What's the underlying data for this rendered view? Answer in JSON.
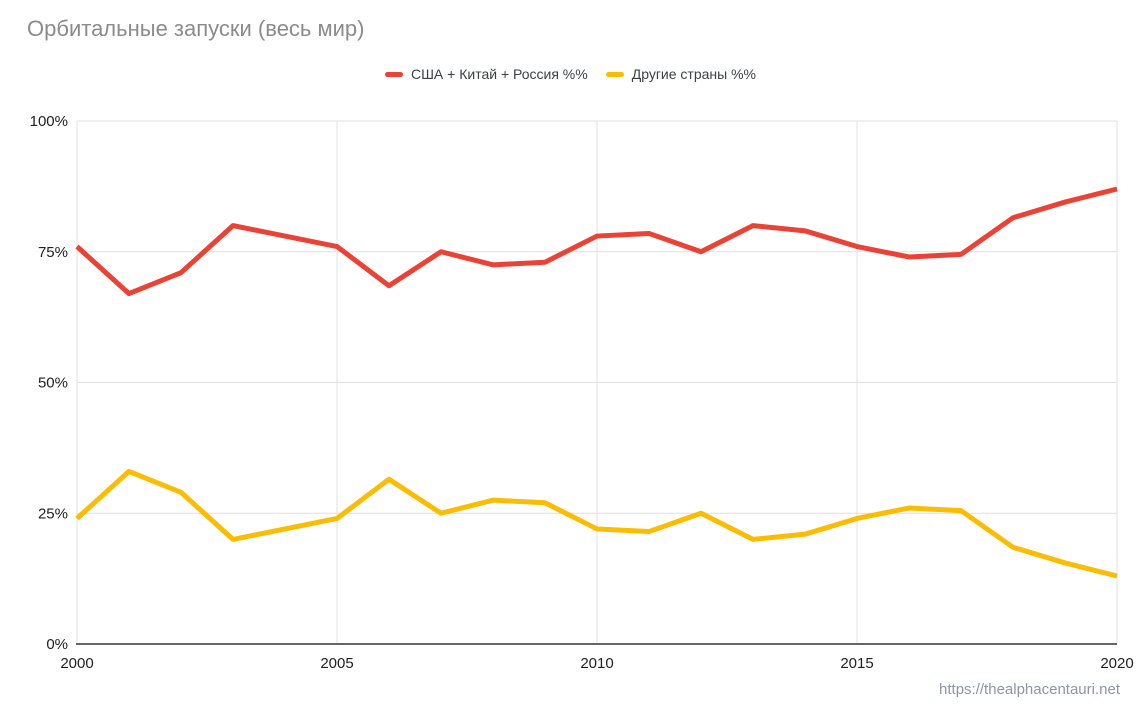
{
  "header": {
    "title": "Орбитальные запуски (весь мир)"
  },
  "footer": {
    "link": "https://thealphacentauri.net"
  },
  "colors": {
    "background": "#FFFFFF",
    "title_text": "#8B8B8B",
    "legend_text": "#3C4043",
    "tick_text": "#212121",
    "grid": "#E0E0E0",
    "axis": "#666666",
    "footer_text": "#8C96A6",
    "series_red": "#EA4335",
    "series_yellow": "#FBBC04"
  },
  "chart_data": {
    "type": "line",
    "title": "Орбитальные запуски (весь мир)",
    "xlabel": "",
    "ylabel": "",
    "x": [
      2000,
      2001,
      2002,
      2003,
      2004,
      2005,
      2006,
      2007,
      2008,
      2009,
      2010,
      2011,
      2012,
      2013,
      2014,
      2015,
      2016,
      2017,
      2018,
      2019,
      2020
    ],
    "series": [
      {
        "name": "США + Китай + Россия %%",
        "color": "#EA4335",
        "values": [
          76,
          67,
          71,
          80,
          78,
          76,
          68.5,
          75,
          72.5,
          73,
          78,
          78.5,
          75,
          80,
          79,
          76,
          74,
          74.5,
          81.5,
          84.5,
          87
        ]
      },
      {
        "name": "Другие страны %%",
        "color": "#FBBC04",
        "values": [
          24,
          33,
          29,
          20,
          22,
          24,
          31.5,
          25,
          27.5,
          27,
          22,
          21.5,
          25,
          20,
          21,
          24,
          26,
          25.5,
          18.5,
          15.5,
          13
        ]
      }
    ],
    "xlim": [
      2000,
      2020
    ],
    "ylim": [
      0,
      100
    ],
    "x_ticks": [
      {
        "label": "2000",
        "value": 2000
      },
      {
        "label": "2005",
        "value": 2005
      },
      {
        "label": "2010",
        "value": 2010
      },
      {
        "label": "2015",
        "value": 2015
      },
      {
        "label": "2020",
        "value": 2020
      }
    ],
    "y_ticks": [
      {
        "label": "0%",
        "value": 0
      },
      {
        "label": "25%",
        "value": 25
      },
      {
        "label": "50%",
        "value": 50
      },
      {
        "label": "75%",
        "value": 75
      },
      {
        "label": "100%",
        "value": 100
      }
    ],
    "grid": true,
    "legend_position": "top",
    "source_watermark": "https://thealphacentauri.net"
  }
}
